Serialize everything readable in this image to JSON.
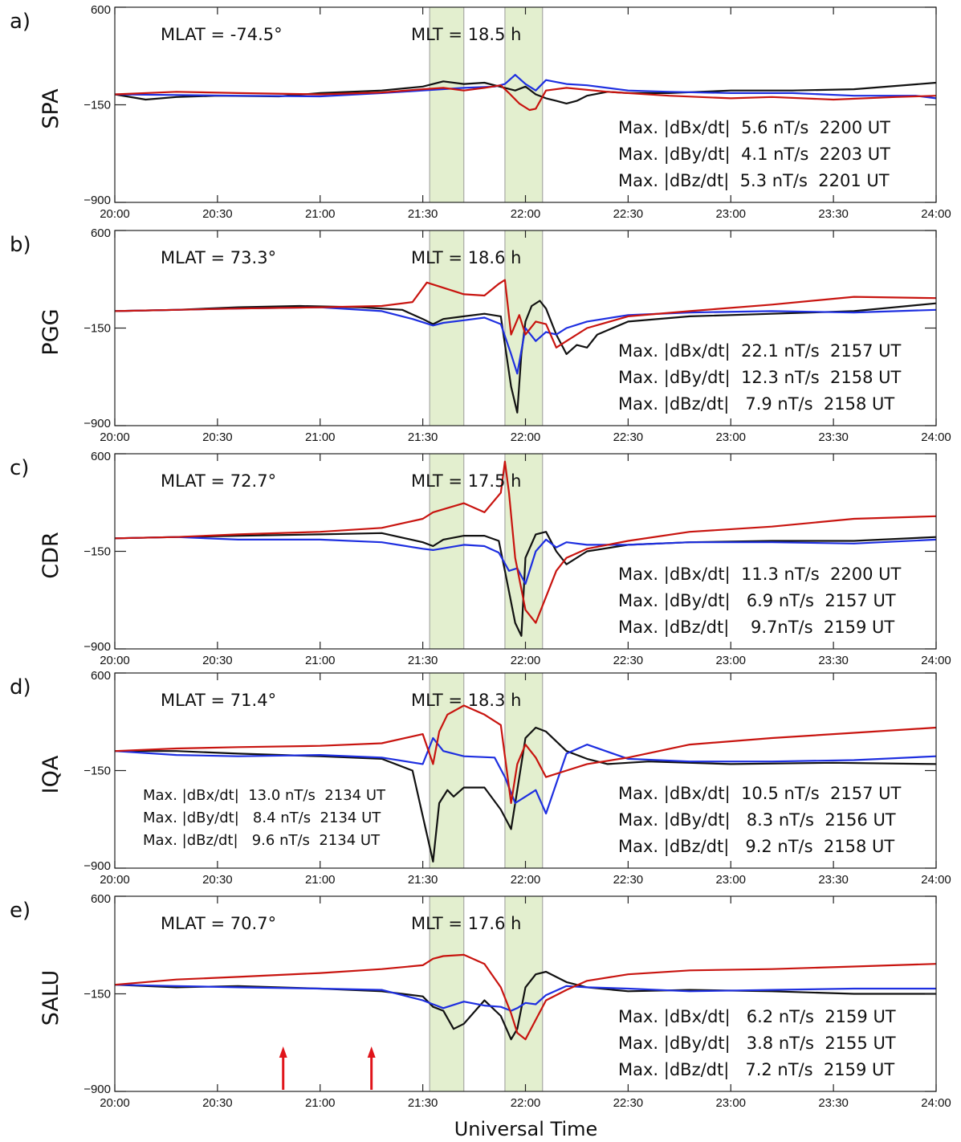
{
  "chart_data": {
    "type": "line",
    "xlabel": "Universal Time",
    "x_ticks": [
      "20:00",
      "20:30",
      "21:00",
      "21:30",
      "22:00",
      "22:30",
      "23:00",
      "23:30",
      "24:00"
    ],
    "xlim_hours": [
      20.0,
      24.0
    ],
    "y_ticks": [
      "600",
      "-150",
      "-900"
    ],
    "ylim": [
      -900,
      600
    ],
    "shaded_intervals_hours": [
      [
        21.5333,
        21.7
      ],
      [
        21.9,
        22.0833
      ]
    ],
    "series_colors": {
      "dBx": "#111111",
      "dBy": "#1e2fe0",
      "dBz": "#c8140f"
    },
    "shade_color": "#e3efcf",
    "shade_border": "#9a9a9a",
    "panels": [
      {
        "label": "a)",
        "station": "SPA",
        "mlat": "MLAT = -74.5°",
        "mlt": "MLT = 18.5 h",
        "annotations_right": [
          "Max. |dBx/dt|  5.6 nT/s  2200 UT",
          "Max. |dBy/dt|  4.1 nT/s  2203 UT",
          "Max. |dBz/dt|  5.3 nT/s  2201 UT"
        ],
        "annotations_left": [],
        "series": [
          {
            "name": "dBx",
            "x": [
              20.0,
              20.15,
              20.3,
              20.5,
              20.8,
              21.0,
              21.3,
              21.5,
              21.6,
              21.7,
              21.8,
              21.9,
              21.95,
              22.0,
              22.05,
              22.1,
              22.15,
              22.2,
              22.25,
              22.3,
              22.4,
              22.5,
              22.7,
              23.0,
              23.3,
              23.6,
              24.0
            ],
            "y": [
              -70,
              -110,
              -90,
              -80,
              -85,
              -60,
              -40,
              -10,
              30,
              10,
              20,
              -20,
              -40,
              -10,
              -70,
              -100,
              -120,
              -140,
              -120,
              -80,
              -50,
              -60,
              -60,
              -40,
              -40,
              -30,
              20
            ]
          },
          {
            "name": "dBy",
            "x": [
              20.0,
              20.3,
              20.6,
              21.0,
              21.3,
              21.5,
              21.7,
              21.85,
              21.9,
              21.95,
              22.0,
              22.05,
              22.1,
              22.2,
              22.3,
              22.5,
              22.7,
              23.0,
              23.3,
              23.6,
              23.9,
              24.0
            ],
            "y": [
              -70,
              -75,
              -80,
              -85,
              -60,
              -40,
              -20,
              -10,
              10,
              80,
              10,
              -40,
              40,
              10,
              0,
              -40,
              -50,
              -60,
              -60,
              -80,
              -80,
              -100
            ]
          },
          {
            "name": "dBz",
            "x": [
              20.0,
              20.3,
              20.6,
              21.0,
              21.3,
              21.5,
              21.6,
              21.7,
              21.8,
              21.88,
              21.92,
              21.97,
              22.02,
              22.05,
              22.1,
              22.2,
              22.4,
              22.7,
              23.0,
              23.2,
              23.5,
              23.8,
              24.0
            ],
            "y": [
              -70,
              -50,
              -60,
              -70,
              -55,
              -30,
              -20,
              -40,
              -20,
              0,
              -60,
              -140,
              -190,
              -180,
              -40,
              -20,
              -50,
              -80,
              -100,
              -90,
              -110,
              -90,
              -80
            ]
          }
        ]
      },
      {
        "label": "b)",
        "station": "PGG",
        "mlat": "MLAT = 73.3°",
        "mlt": "MLT = 18.6 h",
        "annotations_right": [
          "Max. |dBx/dt|  22.1 nT/s  2157 UT",
          "Max. |dBy/dt|  12.3 nT/s  2158 UT",
          "Max. |dBz/dt|   7.9 nT/s  2158 UT"
        ],
        "annotations_left": [],
        "series": [
          {
            "name": "dBx",
            "x": [
              20.0,
              20.3,
              20.6,
              20.9,
              21.2,
              21.4,
              21.5,
              21.55,
              21.6,
              21.7,
              21.8,
              21.88,
              21.93,
              21.96,
              21.98,
              22.0,
              22.03,
              22.07,
              22.1,
              22.15,
              22.2,
              22.25,
              22.3,
              22.35,
              22.5,
              22.8,
              23.2,
              23.6,
              24.0
            ],
            "y": [
              -20,
              -10,
              10,
              20,
              10,
              -10,
              -80,
              -120,
              -80,
              -60,
              -40,
              -60,
              -600,
              -800,
              -350,
              -100,
              20,
              60,
              0,
              -200,
              -350,
              -280,
              -300,
              -200,
              -100,
              -60,
              -40,
              -20,
              40
            ]
          },
          {
            "name": "dBy",
            "x": [
              20.0,
              20.3,
              20.6,
              21.0,
              21.3,
              21.45,
              21.55,
              21.6,
              21.7,
              21.8,
              21.88,
              21.93,
              21.96,
              22.0,
              22.05,
              22.1,
              22.15,
              22.2,
              22.3,
              22.5,
              22.8,
              23.2,
              23.6,
              24.0
            ],
            "y": [
              -20,
              -10,
              0,
              10,
              -20,
              -80,
              -130,
              -110,
              -90,
              -70,
              -120,
              -350,
              -500,
              -150,
              -250,
              -180,
              -200,
              -150,
              -100,
              -50,
              -30,
              -20,
              -30,
              -10
            ]
          },
          {
            "name": "dBz",
            "x": [
              20.0,
              20.3,
              20.6,
              21.0,
              21.3,
              21.45,
              21.52,
              21.58,
              21.7,
              21.8,
              21.87,
              21.9,
              21.93,
              21.97,
              22.0,
              22.05,
              22.1,
              22.15,
              22.2,
              22.3,
              22.5,
              22.8,
              23.2,
              23.6,
              24.0
            ],
            "y": [
              -20,
              -10,
              0,
              10,
              20,
              50,
              200,
              170,
              110,
              100,
              190,
              220,
              -200,
              -50,
              -200,
              -100,
              -120,
              -300,
              -250,
              -150,
              -60,
              -20,
              30,
              90,
              80
            ]
          }
        ]
      },
      {
        "label": "c)",
        "station": "CDR",
        "mlat": "MLAT = 72.7°",
        "mlt": "MLT = 17.5 h",
        "annotations_right": [
          "Max. |dBx/dt|  11.3 nT/s  2200 UT",
          "Max. |dBy/dt|   6.9 nT/s  2157 UT",
          "Max. |dBz/dt|    9.7nT/s  2159 UT"
        ],
        "annotations_left": [],
        "series": [
          {
            "name": "dBx",
            "x": [
              20.0,
              20.3,
              20.6,
              21.0,
              21.3,
              21.5,
              21.55,
              21.6,
              21.7,
              21.8,
              21.87,
              21.9,
              21.95,
              21.98,
              22.0,
              22.05,
              22.1,
              22.15,
              22.2,
              22.3,
              22.5,
              22.8,
              23.2,
              23.6,
              24.0
            ],
            "y": [
              -50,
              -40,
              -30,
              -20,
              -10,
              -80,
              -110,
              -60,
              -30,
              -30,
              -70,
              -300,
              -700,
              -800,
              -200,
              -20,
              0,
              -150,
              -250,
              -150,
              -100,
              -80,
              -70,
              -70,
              -40
            ]
          },
          {
            "name": "dBy",
            "x": [
              20.0,
              20.3,
              20.6,
              21.0,
              21.3,
              21.5,
              21.55,
              21.7,
              21.8,
              21.87,
              21.92,
              21.96,
              22.0,
              22.05,
              22.1,
              22.15,
              22.2,
              22.3,
              22.5,
              22.8,
              23.2,
              23.6,
              24.0
            ],
            "y": [
              -50,
              -40,
              -60,
              -60,
              -80,
              -130,
              -140,
              -100,
              -110,
              -160,
              -300,
              -280,
              -400,
              -150,
              -60,
              -120,
              -80,
              -100,
              -100,
              -80,
              -80,
              -90,
              -60
            ]
          },
          {
            "name": "dBz",
            "x": [
              20.0,
              20.3,
              20.6,
              21.0,
              21.3,
              21.5,
              21.55,
              21.7,
              21.8,
              21.88,
              21.9,
              21.92,
              21.95,
              22.0,
              22.05,
              22.1,
              22.15,
              22.2,
              22.3,
              22.5,
              22.8,
              23.2,
              23.6,
              24.0
            ],
            "y": [
              -50,
              -40,
              -20,
              0,
              30,
              100,
              150,
              220,
              150,
              300,
              540,
              300,
              -200,
              -600,
              -700,
              -500,
              -300,
              -200,
              -130,
              -70,
              0,
              40,
              100,
              120
            ]
          }
        ]
      },
      {
        "label": "d)",
        "station": "IQA",
        "mlat": "MLAT = 71.4°",
        "mlt": "MLT = 18.3 h",
        "annotations_right": [
          "Max. |dBx/dt|  10.5 nT/s  2157 UT",
          "Max. |dBy/dt|   8.3 nT/s  2156 UT",
          "Max. |dBz/dt|   9.2 nT/s  2158 UT"
        ],
        "annotations_left": [
          "Max. |dBx/dt|  13.0 nT/s  2134 UT",
          "Max. |dBy/dt|   8.4 nT/s  2134 UT",
          "Max. |dBz/dt|   9.6 nT/s  2134 UT"
        ],
        "series": [
          {
            "name": "dBx",
            "x": [
              20.0,
              20.3,
              20.6,
              21.0,
              21.3,
              21.45,
              21.5,
              21.55,
              21.58,
              21.62,
              21.65,
              21.7,
              21.8,
              21.88,
              21.93,
              21.96,
              22.0,
              22.05,
              22.1,
              22.2,
              22.3,
              22.4,
              22.6,
              23.0,
              23.5,
              24.0
            ],
            "y": [
              0,
              0,
              -20,
              -40,
              -60,
              -150,
              -500,
              -850,
              -400,
              -300,
              -350,
              -280,
              -280,
              -450,
              -600,
              -300,
              100,
              180,
              150,
              0,
              -60,
              -100,
              -80,
              -100,
              -90,
              -100
            ]
          },
          {
            "name": "dBy",
            "x": [
              20.0,
              20.3,
              20.6,
              21.0,
              21.3,
              21.5,
              21.55,
              21.6,
              21.7,
              21.85,
              21.9,
              21.95,
              22.0,
              22.05,
              22.1,
              22.2,
              22.3,
              22.5,
              22.8,
              23.2,
              23.6,
              24.0
            ],
            "y": [
              0,
              -30,
              -40,
              -30,
              -50,
              -100,
              100,
              0,
              -40,
              -50,
              -200,
              -400,
              -350,
              -300,
              -480,
              -20,
              50,
              -60,
              -80,
              -80,
              -70,
              -40
            ]
          },
          {
            "name": "dBz",
            "x": [
              20.0,
              20.3,
              20.6,
              21.0,
              21.3,
              21.5,
              21.55,
              21.58,
              21.62,
              21.7,
              21.8,
              21.88,
              21.93,
              21.96,
              22.0,
              22.05,
              22.1,
              22.2,
              22.3,
              22.5,
              22.8,
              23.2,
              23.6,
              24.0
            ],
            "y": [
              0,
              20,
              30,
              40,
              60,
              130,
              -100,
              150,
              280,
              350,
              280,
              200,
              -400,
              -100,
              50,
              -50,
              -200,
              -150,
              -100,
              -50,
              50,
              100,
              140,
              180
            ]
          }
        ]
      },
      {
        "label": "e)",
        "station": "SALU",
        "mlat": "MLAT = 70.7°",
        "mlt": "MLT = 17.6 h",
        "annotations_right": [
          "Max. |dBx/dt|   6.2 nT/s  2159 UT",
          "Max. |dBy/dt|   3.8 nT/s  2155 UT",
          "Max. |dBz/dt|   7.2 nT/s  2159 UT"
        ],
        "annotations_left": [],
        "arrows_at_hours": [
          20.82,
          21.25
        ],
        "series": [
          {
            "name": "dBx",
            "x": [
              20.0,
              20.3,
              20.6,
              21.0,
              21.3,
              21.5,
              21.55,
              21.6,
              21.65,
              21.7,
              21.8,
              21.88,
              21.93,
              21.96,
              22.0,
              22.05,
              22.1,
              22.2,
              22.3,
              22.5,
              22.8,
              23.2,
              23.6,
              24.0
            ],
            "y": [
              -80,
              -100,
              -90,
              -110,
              -130,
              -170,
              -250,
              -280,
              -420,
              -380,
              -200,
              -320,
              -500,
              -420,
              -100,
              0,
              20,
              -60,
              -100,
              -130,
              -120,
              -130,
              -150,
              -150
            ]
          },
          {
            "name": "dBy",
            "x": [
              20.0,
              20.3,
              20.6,
              21.0,
              21.3,
              21.5,
              21.55,
              21.6,
              21.7,
              21.8,
              21.88,
              21.93,
              21.96,
              22.0,
              22.05,
              22.1,
              22.2,
              22.3,
              22.5,
              22.8,
              23.2,
              23.6,
              24.0
            ],
            "y": [
              -80,
              -90,
              -100,
              -110,
              -120,
              -200,
              -230,
              -260,
              -210,
              -240,
              -250,
              -280,
              -260,
              -220,
              -230,
              -160,
              -90,
              -100,
              -110,
              -130,
              -120,
              -110,
              -110
            ]
          },
          {
            "name": "dBz",
            "x": [
              20.0,
              20.3,
              20.6,
              21.0,
              21.3,
              21.5,
              21.55,
              21.6,
              21.7,
              21.8,
              21.88,
              21.93,
              21.96,
              22.0,
              22.05,
              22.1,
              22.2,
              22.3,
              22.5,
              22.8,
              23.2,
              23.6,
              24.0
            ],
            "y": [
              -80,
              -40,
              -20,
              10,
              40,
              70,
              120,
              140,
              150,
              80,
              -100,
              -300,
              -450,
              -500,
              -350,
              -200,
              -120,
              -50,
              0,
              30,
              40,
              60,
              80
            ]
          }
        ]
      }
    ]
  }
}
